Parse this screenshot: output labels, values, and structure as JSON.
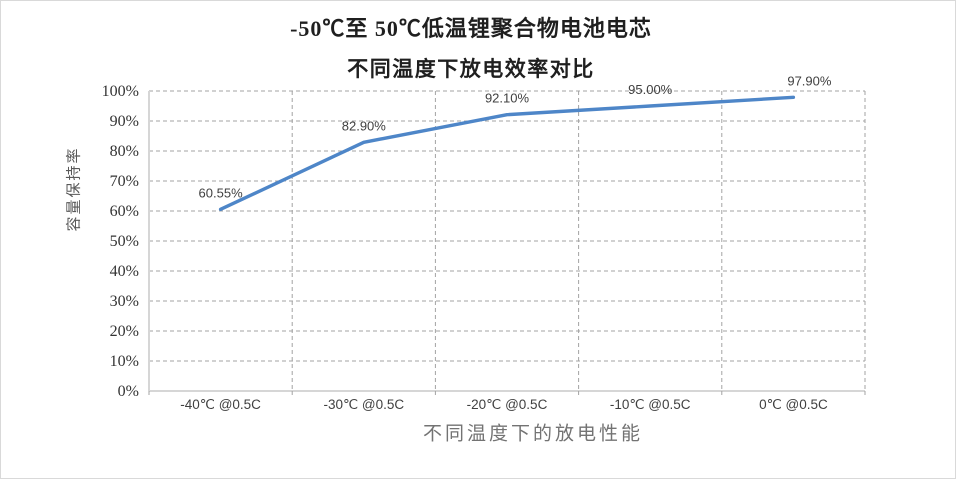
{
  "header": {
    "title": "-50℃至 50℃低温锂聚合物电池电芯",
    "subtitle": "不同温度下放电效率对比"
  },
  "chart_data": {
    "type": "line",
    "title": "不同温度下放电效率对比",
    "categories": [
      "-40℃ @0.5C",
      "-30℃ @0.5C",
      "-20℃ @0.5C",
      "-10℃ @0.5C",
      "0℃ @0.5C"
    ],
    "series": [
      {
        "name": "容量保持率",
        "values": [
          60.55,
          82.9,
          92.1,
          95.0,
          97.9
        ]
      }
    ],
    "data_labels": [
      "60.55%",
      "82.90%",
      "92.10%",
      "95.00%",
      "97.90%"
    ],
    "xlabel": "不同温度下的放电性能",
    "ylabel": "容量保持率",
    "ylim": [
      0,
      100
    ],
    "y_tick_step": 10,
    "y_tick_labels": [
      "0%",
      "10%",
      "20%",
      "30%",
      "40%",
      "50%",
      "60%",
      "70%",
      "80%",
      "90%",
      "100%"
    ],
    "grid": "dashed",
    "legend": "none",
    "colors": {
      "line": "#4e86c8",
      "gridline": "#a3a3a3",
      "axis": "#d6d6d6",
      "y_tick_label": "#333333",
      "x_tick_label": "#404040",
      "data_label": "#404040",
      "frame_border": "#d9d9d9"
    }
  }
}
